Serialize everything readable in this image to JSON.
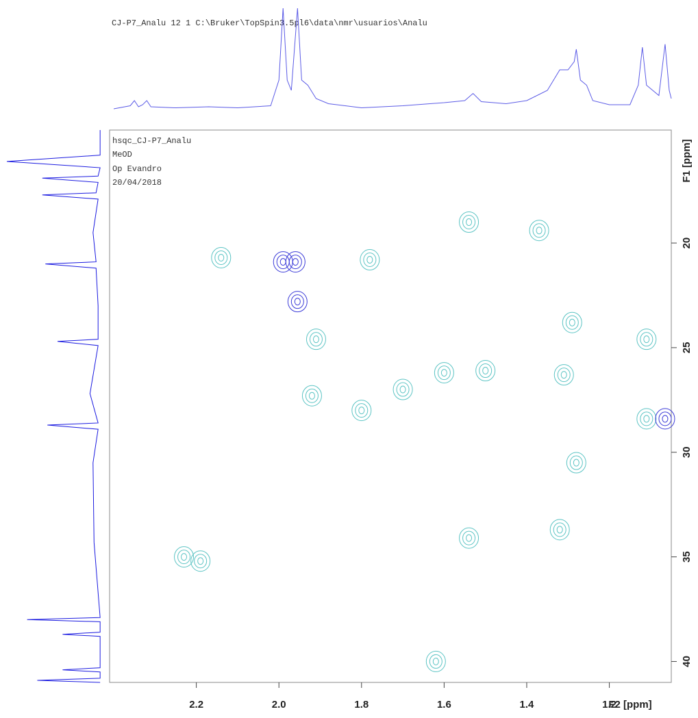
{
  "chart_data": {
    "type": "hsqc",
    "title": "CJ-P7_Analu  12  1  C:\\Bruker\\TopSpin3.5pl6\\data\\nmr\\usuarios\\Analu",
    "annotations": [
      "hsqc_CJ-P7_Analu",
      "MeOD",
      "Op Evandro",
      "20/04/2018"
    ],
    "xlabel": "F2 [ppm]",
    "ylabel": "F1 [ppm]",
    "xlim": [
      2.41,
      1.05
    ],
    "ylim": [
      14.6,
      41.0
    ],
    "xticks": [
      2.2,
      {
        "value": 2,
        "label": "2.0"
      },
      1.8,
      1.6,
      1.4,
      1.2
    ],
    "yticks": [
      20,
      25,
      30,
      35,
      40
    ],
    "series": [
      {
        "color": "#5cc4c4",
        "x": [
          2.14,
          2.23,
          2.19,
          1.54,
          1.37,
          1.29,
          1.91,
          1.92,
          1.6,
          1.7,
          1.5,
          1.31,
          1.11,
          1.11,
          1.28,
          1.54,
          1.32,
          1.62,
          1.78,
          1.8
        ],
        "values": [
          20.7,
          35.0,
          35.2,
          19.0,
          19.4,
          23.8,
          24.6,
          27.3,
          26.2,
          27.0,
          26.1,
          26.3,
          24.6,
          28.4,
          30.5,
          34.1,
          33.7,
          40.0,
          20.8,
          28.0
        ]
      },
      {
        "color": "#3a3ad8",
        "x": [
          1.99,
          1.96,
          1.955,
          1.065
        ],
        "values": [
          20.9,
          20.9,
          22.8,
          28.4
        ]
      }
    ],
    "projection_f2": {
      "color": "#5a5ae6",
      "ylim": [
        0,
        100
      ],
      "x": [
        2.4,
        2.36,
        2.35,
        2.34,
        2.33,
        2.32,
        2.31,
        2.25,
        2.17,
        2.1,
        2.02,
        2.0,
        1.99,
        1.98,
        1.97,
        1.955,
        1.945,
        1.93,
        1.91,
        1.88,
        1.8,
        1.7,
        1.6,
        1.55,
        1.53,
        1.51,
        1.45,
        1.4,
        1.35,
        1.32,
        1.3,
        1.285,
        1.28,
        1.27,
        1.255,
        1.24,
        1.2,
        1.15,
        1.13,
        1.12,
        1.11,
        1.08,
        1.065,
        1.055,
        1.05
      ],
      "values": [
        2,
        5,
        10,
        4,
        6,
        10,
        4,
        3,
        4,
        3,
        5,
        30,
        100,
        30,
        20,
        100,
        30,
        25,
        12,
        7,
        3,
        5,
        8,
        10,
        17,
        9,
        7,
        10,
        20,
        40,
        40,
        48,
        60,
        30,
        25,
        10,
        6,
        6,
        25,
        62,
        25,
        15,
        65,
        20,
        12
      ]
    },
    "projection_f1": {
      "color": "#1a1ae0",
      "xlim": [
        0,
        100
      ],
      "y": [
        14.6,
        15.8,
        16.1,
        16.4,
        16.8,
        16.9,
        17.1,
        17.6,
        17.7,
        17.9,
        19.5,
        20.9,
        21.0,
        21.2,
        23.0,
        24.6,
        24.7,
        24.9,
        27.2,
        28.6,
        28.7,
        28.9,
        30.5,
        34.3,
        37.9,
        38.0,
        38.1,
        38.6,
        38.7,
        38.8,
        40.3,
        40.4,
        40.5,
        40.8,
        40.9,
        41.0
      ],
      "values": [
        8,
        8,
        100,
        8,
        10,
        65,
        10,
        12,
        65,
        10,
        15,
        12,
        62,
        12,
        10,
        10,
        50,
        10,
        18,
        10,
        60,
        10,
        15,
        14,
        8,
        80,
        8,
        8,
        45,
        8,
        8,
        45,
        8,
        8,
        70,
        8
      ]
    }
  }
}
